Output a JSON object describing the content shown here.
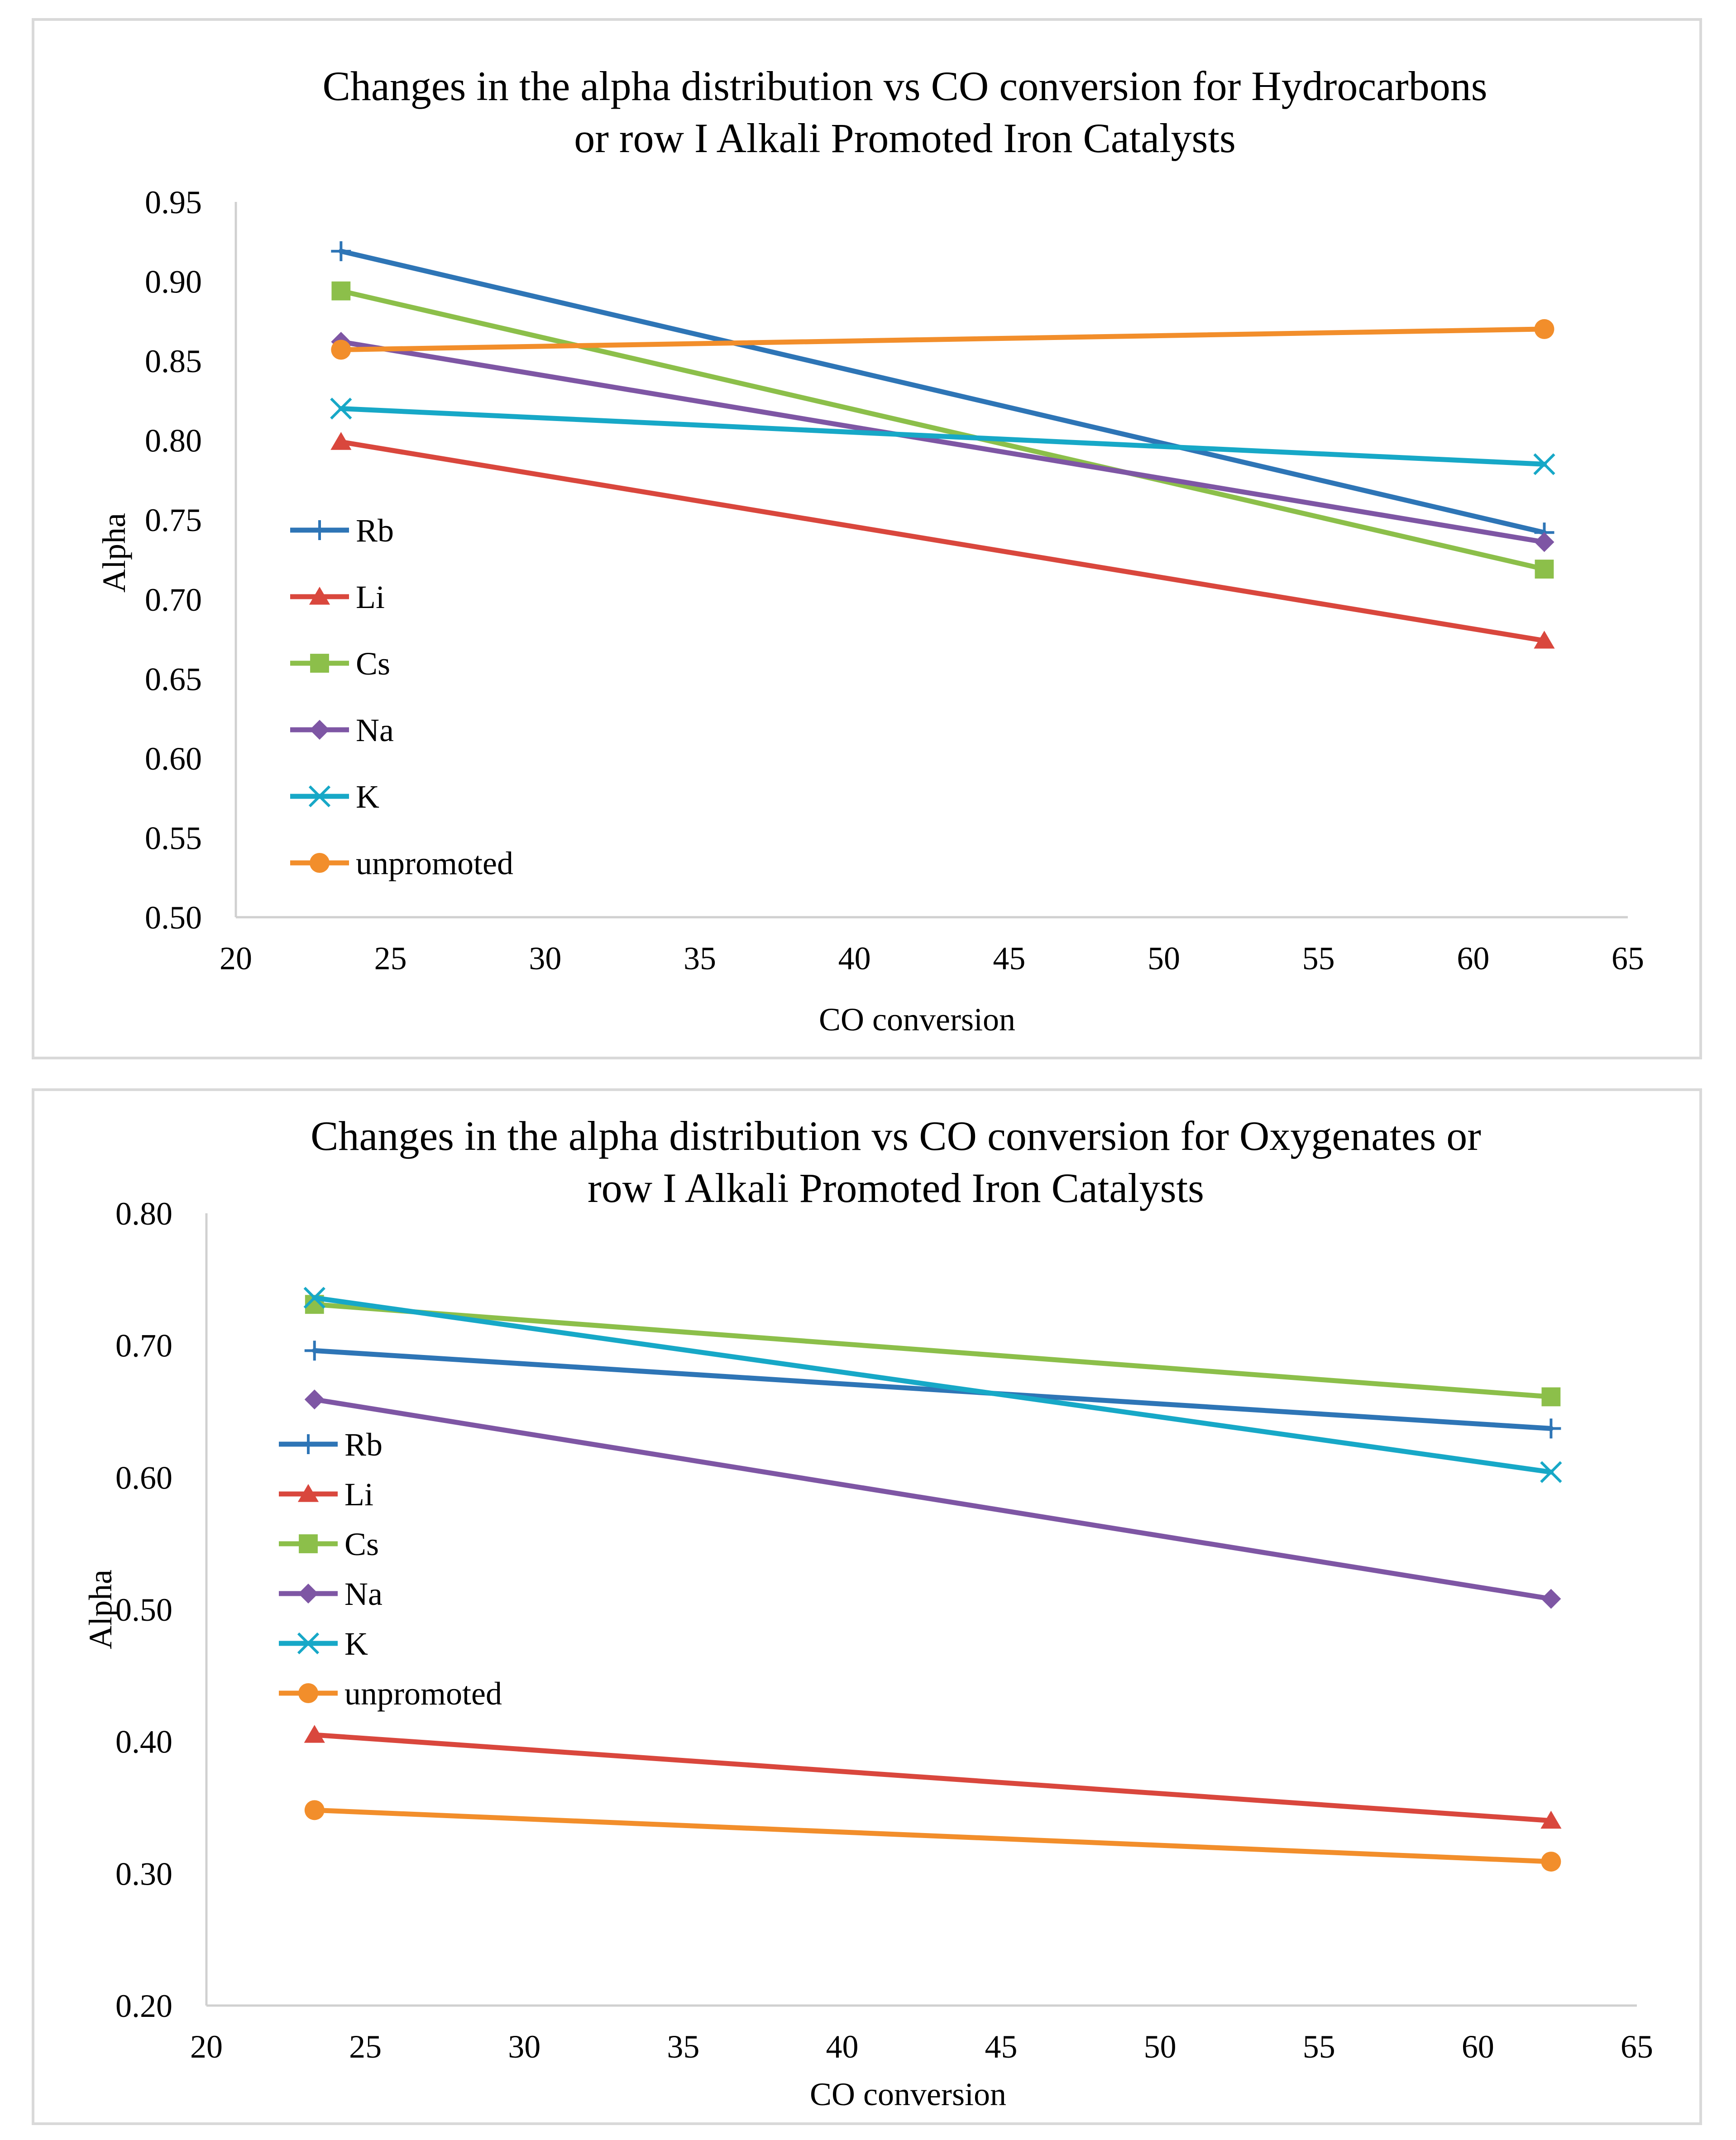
{
  "chart_data": [
    {
      "type": "line",
      "title": [
        "Changes in the alpha distribution vs CO conversion for Hydrocarbons",
        "or row I Alkali Promoted Iron Catalysts"
      ],
      "xlabel": "CO conversion",
      "ylabel": "Alpha",
      "xlim": [
        20,
        65
      ],
      "ylim": [
        0.5,
        0.95
      ],
      "xticks": [
        "20",
        "25",
        "30",
        "35",
        "40",
        "45",
        "50",
        "55",
        "60",
        "65"
      ],
      "yticks": [
        "0.50",
        "0.55",
        "0.60",
        "0.65",
        "0.70",
        "0.75",
        "0.80",
        "0.85",
        "0.90",
        "0.95"
      ],
      "grid": false,
      "legend_position": "left-center",
      "series": [
        {
          "name": "Rb",
          "color": "#2e75b6",
          "marker": "plus",
          "x": [
            23.4,
            62.3
          ],
          "y": [
            0.919,
            0.742
          ]
        },
        {
          "name": "Li",
          "color": "#d9473d",
          "marker": "triangle",
          "x": [
            23.4,
            62.3
          ],
          "y": [
            0.799,
            0.674
          ]
        },
        {
          "name": "Cs",
          "color": "#8cbf4a",
          "marker": "square",
          "x": [
            23.4,
            62.3
          ],
          "y": [
            0.894,
            0.719
          ]
        },
        {
          "name": "Na",
          "color": "#7e56a4",
          "marker": "diamond",
          "x": [
            23.4,
            62.3
          ],
          "y": [
            0.862,
            0.736
          ]
        },
        {
          "name": "K",
          "color": "#17a8c7",
          "marker": "x",
          "x": [
            23.4,
            62.3
          ],
          "y": [
            0.82,
            0.785
          ]
        },
        {
          "name": "unpromoted",
          "color": "#f28e2b",
          "marker": "circle",
          "x": [
            23.4,
            62.3
          ],
          "y": [
            0.857,
            0.87
          ]
        }
      ]
    },
    {
      "type": "line",
      "title": [
        "Changes in the alpha distribution vs CO conversion for Oxygenates or",
        "row I Alkali Promoted Iron Catalysts"
      ],
      "xlabel": "CO conversion",
      "ylabel": "Alpha",
      "xlim": [
        20,
        65
      ],
      "ylim": [
        0.2,
        0.8
      ],
      "xticks": [
        "20",
        "25",
        "30",
        "35",
        "40",
        "45",
        "50",
        "55",
        "60",
        "65"
      ],
      "yticks": [
        "0.20",
        "0.30",
        "0.40",
        "0.50",
        "0.60",
        "0.70",
        "0.80"
      ],
      "grid": false,
      "legend_position": "left-center",
      "series": [
        {
          "name": "Rb",
          "color": "#2e75b6",
          "marker": "plus",
          "x": [
            23.4,
            62.3
          ],
          "y": [
            0.696,
            0.637
          ]
        },
        {
          "name": "Li",
          "color": "#d9473d",
          "marker": "triangle",
          "x": [
            23.4,
            62.3
          ],
          "y": [
            0.405,
            0.34
          ]
        },
        {
          "name": "Cs",
          "color": "#8cbf4a",
          "marker": "square",
          "x": [
            23.4,
            62.3
          ],
          "y": [
            0.731,
            0.661
          ]
        },
        {
          "name": "Na",
          "color": "#7e56a4",
          "marker": "diamond",
          "x": [
            23.4,
            62.3
          ],
          "y": [
            0.659,
            0.508
          ]
        },
        {
          "name": "K",
          "color": "#17a8c7",
          "marker": "x",
          "x": [
            23.4,
            62.3
          ],
          "y": [
            0.736,
            0.604
          ]
        },
        {
          "name": "unpromoted",
          "color": "#f28e2b",
          "marker": "circle",
          "x": [
            23.4,
            62.3
          ],
          "y": [
            0.348,
            0.309
          ]
        }
      ]
    }
  ]
}
